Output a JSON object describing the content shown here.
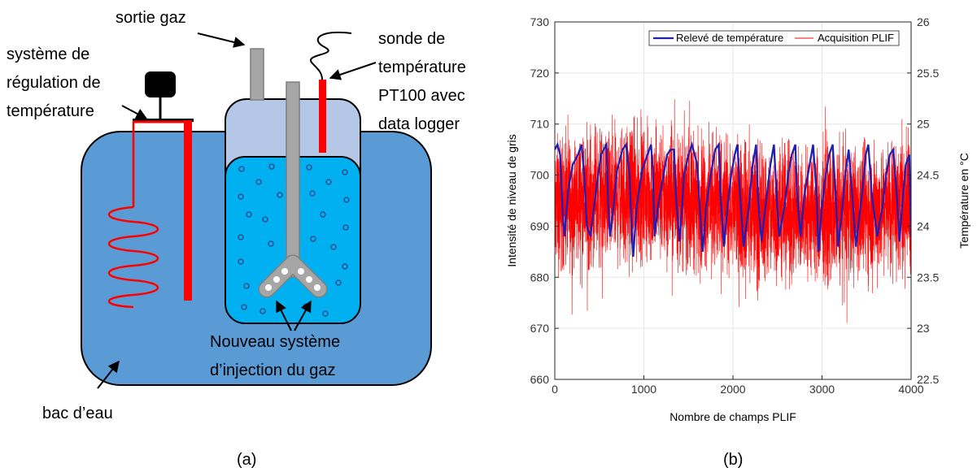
{
  "panel_a": {
    "caption": "(a)",
    "labels": {
      "gas_outlet": "sortie gaz",
      "regulation_1": "système de",
      "regulation_2": "régulation de",
      "regulation_3": "température",
      "probe_1": "sonde de",
      "probe_2": "température",
      "probe_3": "PT100 avec",
      "probe_4": "data logger",
      "injection_1": "Nouveau système",
      "injection_2": "d’injection du gaz",
      "water_tank": "bac d’eau"
    },
    "colors": {
      "water_tank": "#5b9bd5",
      "vessel_gas": "#b4c7e7",
      "vessel_liquid": "#00b0f0",
      "bubble": "#2f5597",
      "heater": "#ff0000",
      "tube": "#a6a6a6"
    }
  },
  "panel_b": {
    "caption": "(b)"
  },
  "chart_data": {
    "type": "line",
    "xlabel": "Nombre de champs PLIF",
    "ylabel": "Intensité de niveau de gris",
    "y2label": "Température en °C",
    "xlim": [
      0,
      4000
    ],
    "ylim": [
      660,
      730
    ],
    "y2lim": [
      22.5,
      26
    ],
    "xticks": [
      "0",
      "1000",
      "2000",
      "3000",
      "4000"
    ],
    "yticks": [
      "660",
      "670",
      "680",
      "690",
      "700",
      "710",
      "720",
      "730"
    ],
    "y2ticks": [
      "22.5",
      "23",
      "23.5",
      "24",
      "24.5",
      "25",
      "25.5",
      "26"
    ],
    "grid": true,
    "legend_position": "top",
    "legend": [
      "Relevé de température",
      "Acquisition PLIF"
    ],
    "series": [
      {
        "name": "Relevé de température",
        "axis": "right",
        "color": "#1f1fb4",
        "x": [
          0,
          30,
          60,
          90,
          110,
          150,
          200,
          260,
          300,
          330,
          360,
          400,
          470,
          520,
          580,
          600,
          620,
          660,
          700,
          760,
          800,
          840,
          860,
          880,
          920,
          980,
          1040,
          1080,
          1100,
          1120,
          1160,
          1220,
          1260,
          1300,
          1340,
          1360,
          1400,
          1430,
          1450,
          1500,
          1540,
          1600,
          1640,
          1660,
          1700,
          1760,
          1800,
          1840,
          1860,
          1900,
          1940,
          1980,
          2020,
          2050,
          2080,
          2120,
          2180,
          2220,
          2260,
          2280,
          2320,
          2380,
          2420,
          2460,
          2490,
          2520,
          2580,
          2620,
          2660,
          2700,
          2720,
          2760,
          2800,
          2860,
          2900,
          2940,
          2960,
          3000,
          3040,
          3080,
          3120,
          3160,
          3180,
          3220,
          3260,
          3300,
          3340,
          3380,
          3420,
          3460,
          3490,
          3520,
          3560,
          3620,
          3680,
          3720,
          3760,
          3800,
          3840,
          3870,
          3900,
          3940,
          3980,
          4000
        ],
        "y": [
          24.75,
          24.8,
          24.7,
          24.1,
          23.9,
          24.35,
          24.6,
          24.7,
          24.8,
          24.5,
          24.0,
          23.9,
          24.4,
          24.7,
          24.8,
          24.2,
          23.9,
          24.2,
          24.55,
          24.75,
          24.8,
          24.5,
          24.0,
          23.7,
          24.2,
          24.55,
          24.7,
          24.8,
          24.55,
          23.9,
          24.2,
          24.5,
          24.7,
          24.75,
          24.75,
          24.3,
          23.85,
          24.2,
          24.5,
          24.7,
          24.8,
          24.6,
          24.0,
          23.75,
          24.2,
          24.55,
          24.75,
          24.8,
          24.3,
          23.8,
          24.2,
          24.5,
          24.7,
          24.8,
          24.3,
          23.8,
          24.2,
          24.6,
          24.8,
          24.3,
          23.85,
          24.3,
          24.6,
          24.8,
          24.3,
          23.9,
          24.2,
          24.5,
          24.7,
          24.8,
          24.3,
          23.9,
          24.3,
          24.6,
          24.8,
          24.3,
          23.75,
          24.2,
          24.5,
          24.7,
          24.8,
          24.2,
          23.8,
          24.1,
          24.5,
          24.75,
          24.3,
          23.8,
          24.1,
          24.4,
          24.7,
          24.8,
          24.3,
          23.9,
          24.2,
          24.5,
          24.7,
          24.75,
          24.3,
          23.85,
          24.2,
          24.6,
          24.7,
          23.9
        ]
      },
      {
        "name": "Acquisition PLIF",
        "axis": "left",
        "color": "#ff0000",
        "mean": 694,
        "spread": 9,
        "n_points": 4000
      }
    ]
  }
}
